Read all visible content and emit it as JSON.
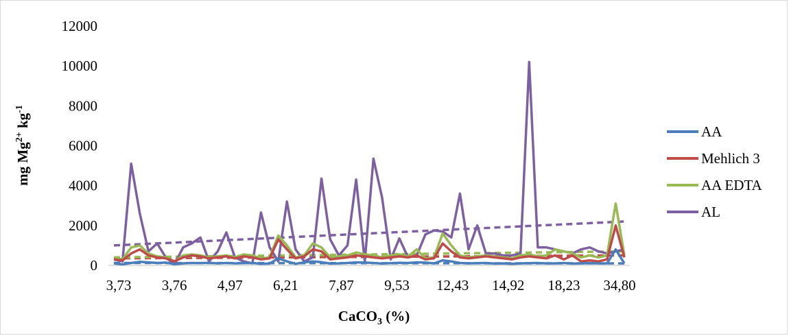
{
  "chart_data": {
    "type": "line",
    "xlabel_main": "CaCO",
    "xlabel_sub": "3",
    "xlabel_tail": " (%)",
    "ylabel_main": "mg Mg",
    "ylabel_sup": "2+",
    "ylabel_mid": " kg",
    "ylabel_sup2": "-1",
    "ylim": [
      0,
      12000
    ],
    "yticks": [
      "0",
      "2000",
      "4000",
      "6000",
      "8000",
      "10000",
      "12000"
    ],
    "xticks": [
      "3,73",
      "3,76",
      "4,97",
      "6,21",
      "7,87",
      "9,53",
      "12,43",
      "14,92",
      "18,23",
      "34,80"
    ],
    "n_points": 60,
    "grid": false,
    "legend_position": "right",
    "series": [
      {
        "name": "AA",
        "color": "#4a7ebb",
        "values": [
          100,
          50,
          120,
          180,
          150,
          120,
          140,
          60,
          100,
          120,
          110,
          130,
          100,
          120,
          100,
          110,
          120,
          80,
          90,
          350,
          200,
          80,
          150,
          200,
          160,
          90,
          100,
          120,
          150,
          140,
          120,
          90,
          110,
          130,
          120,
          150,
          140,
          100,
          250,
          200,
          120,
          100,
          110,
          120,
          90,
          100,
          80,
          100,
          110,
          120,
          100,
          100,
          120,
          90,
          100,
          110,
          100,
          100,
          800,
          100
        ],
        "trend": [
          120,
          100
        ]
      },
      {
        "name": "Mehlich 3",
        "color": "#be4b48",
        "values": [
          300,
          250,
          600,
          800,
          500,
          400,
          350,
          200,
          400,
          500,
          450,
          350,
          400,
          450,
          350,
          450,
          400,
          300,
          350,
          1300,
          800,
          350,
          450,
          800,
          700,
          300,
          350,
          400,
          500,
          450,
          400,
          350,
          400,
          450,
          400,
          500,
          300,
          350,
          1100,
          700,
          400,
          350,
          400,
          450,
          400,
          350,
          300,
          400,
          450,
          400,
          350,
          500,
          300,
          500,
          200,
          250,
          200,
          300,
          2000,
          400
        ],
        "trend": [
          350,
          500
        ]
      },
      {
        "name": "AA EDTA",
        "color": "#98b954",
        "values": [
          400,
          300,
          900,
          1000,
          600,
          450,
          400,
          200,
          500,
          550,
          500,
          400,
          450,
          500,
          400,
          550,
          500,
          350,
          400,
          1500,
          1000,
          400,
          500,
          1100,
          900,
          400,
          450,
          500,
          650,
          550,
          500,
          400,
          500,
          550,
          450,
          800,
          350,
          400,
          1600,
          1000,
          500,
          400,
          450,
          500,
          450,
          400,
          350,
          500,
          550,
          450,
          500,
          800,
          700,
          600,
          400,
          500,
          400,
          500,
          3100,
          500
        ],
        "trend": [
          400,
          700
        ]
      },
      {
        "name": "AL",
        "color": "#7d60a0",
        "values": [
          300,
          200,
          5100,
          2600,
          700,
          1100,
          400,
          50,
          900,
          1100,
          1400,
          200,
          700,
          1650,
          400,
          200,
          100,
          2650,
          900,
          200,
          3200,
          800,
          200,
          400,
          4350,
          1300,
          500,
          1000,
          4300,
          200,
          5350,
          3400,
          300,
          1350,
          400,
          500,
          1550,
          1750,
          1700,
          1400,
          3600,
          800,
          2000,
          600,
          600,
          500,
          500,
          600,
          10200,
          900,
          900,
          800,
          700,
          600,
          800,
          900,
          700,
          600,
          700,
          800
        ],
        "trend": [
          1000,
          2200
        ]
      }
    ]
  }
}
